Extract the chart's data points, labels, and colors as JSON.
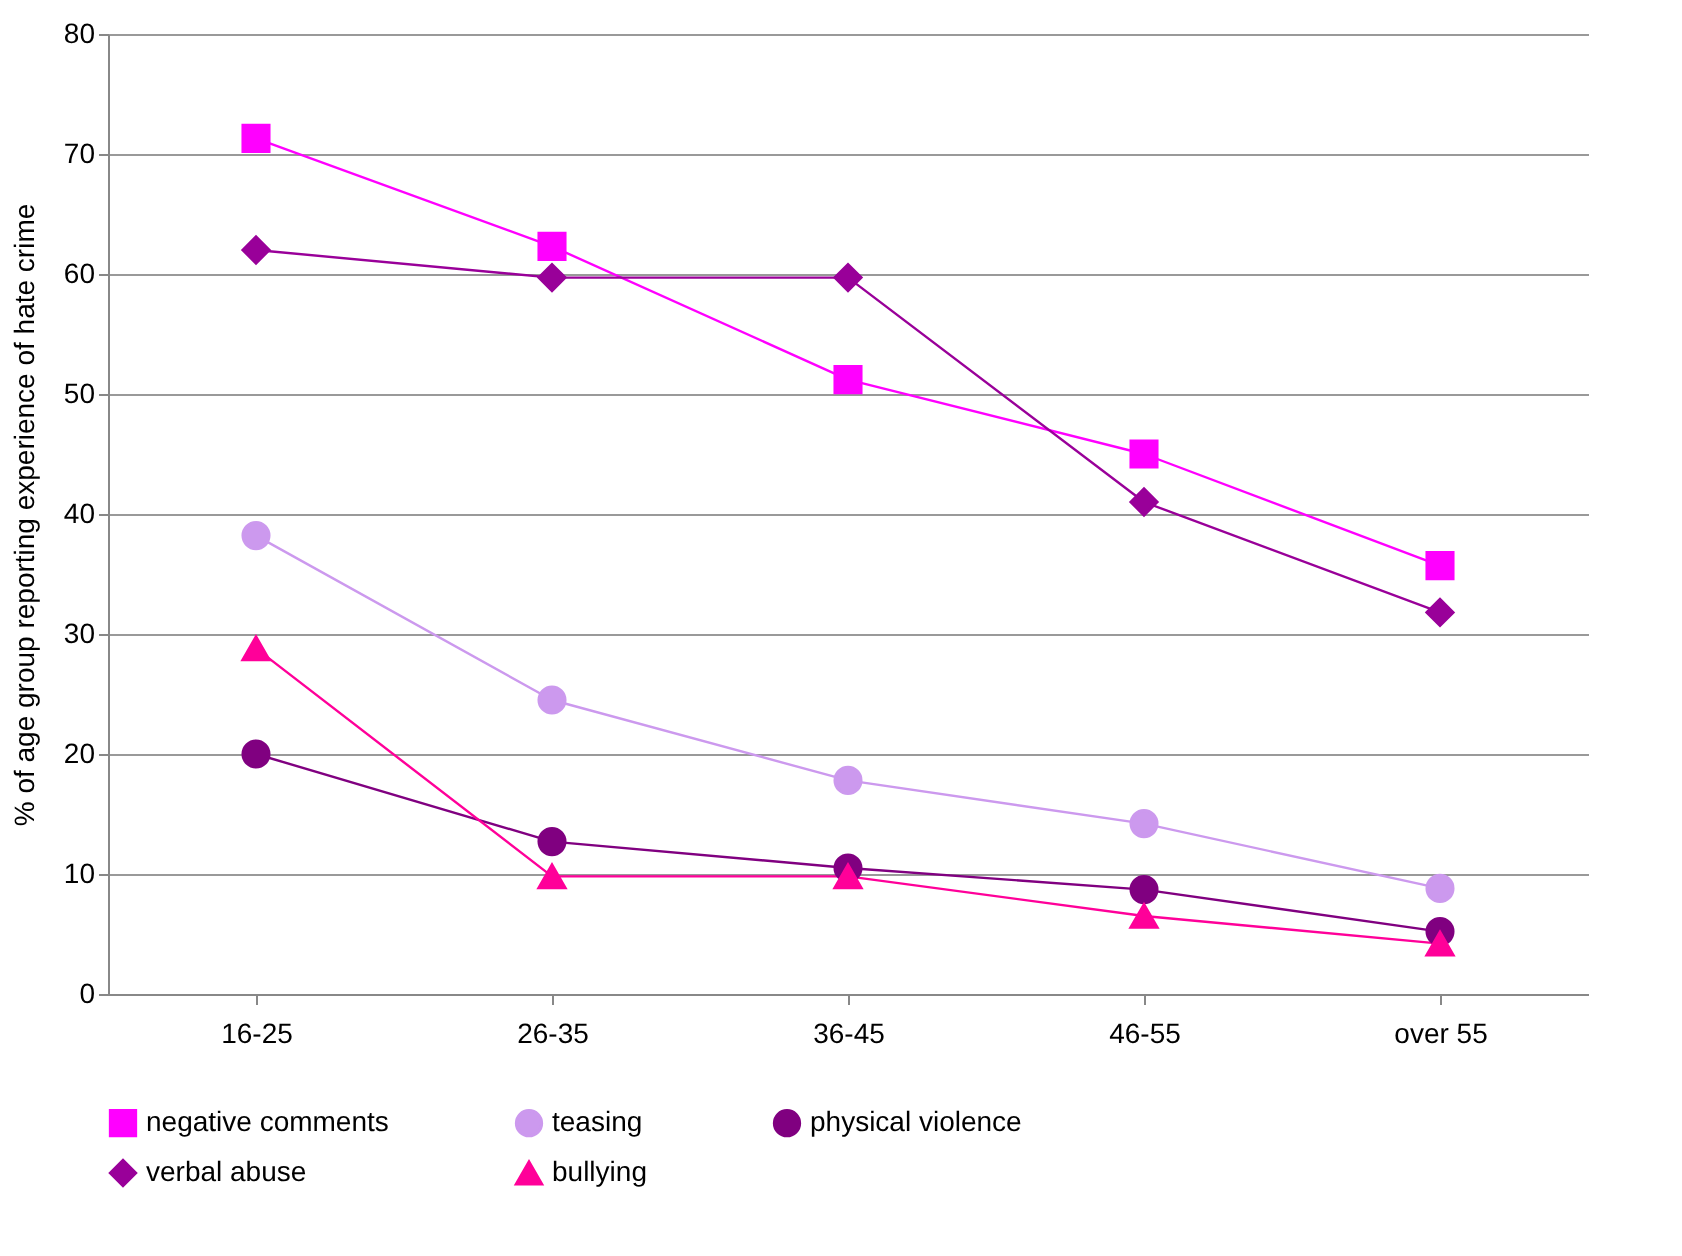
{
  "chart_data": {
    "type": "line",
    "ylabel": "% of age group reporting experience of hate crime",
    "categories": [
      "16-25",
      "26-35",
      "36-45",
      "46-55",
      "over 55"
    ],
    "ylim": [
      0,
      80
    ],
    "yticks": [
      0,
      10,
      20,
      30,
      40,
      50,
      60,
      70,
      80
    ],
    "grid": "y",
    "legend": "bottom",
    "series": [
      {
        "name": "negative comments",
        "color": "#ff00ff",
        "marker": "square",
        "values": [
          71.3,
          62.3,
          51.2,
          45,
          35.7
        ]
      },
      {
        "name": "teasing",
        "color": "#cc99ee",
        "marker": "circle",
        "values": [
          38.2,
          24.5,
          17.8,
          14.2,
          8.8
        ]
      },
      {
        "name": "physical violence",
        "color": "#800080",
        "marker": "circle",
        "values": [
          20,
          12.7,
          10.5,
          8.7,
          5.2
        ]
      },
      {
        "name": "verbal abuse",
        "color": "#990099",
        "marker": "diamond",
        "values": [
          62,
          59.7,
          59.7,
          41,
          31.8
        ]
      },
      {
        "name": "bullying",
        "color": "#ff0099",
        "marker": "triangle",
        "values": [
          28.8,
          9.8,
          9.8,
          6.5,
          4.2
        ]
      }
    ]
  }
}
